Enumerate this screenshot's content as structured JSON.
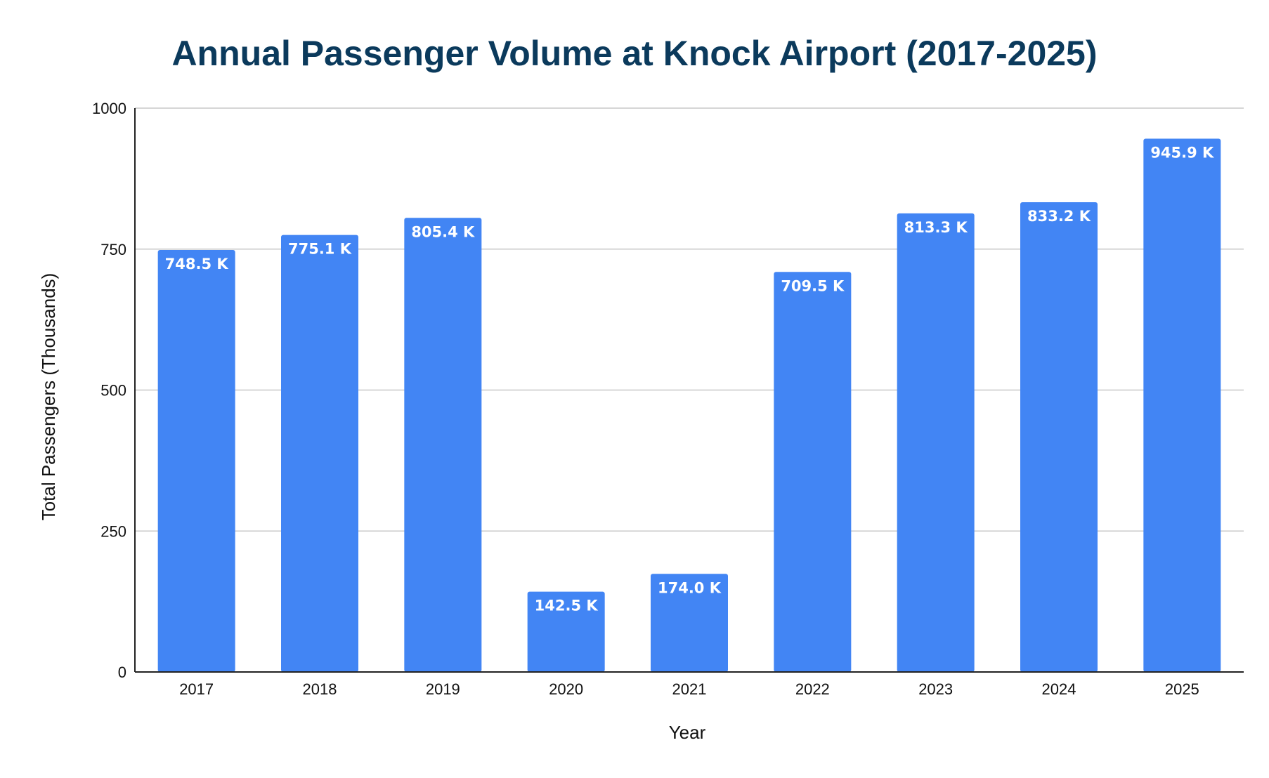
{
  "chart_data": {
    "type": "bar",
    "title": "Annual Passenger Volume at Knock Airport (2017-2025)",
    "xlabel": "Year",
    "ylabel": "Total Passengers (Thousands)",
    "categories": [
      "2017",
      "2018",
      "2019",
      "2020",
      "2021",
      "2022",
      "2023",
      "2024",
      "2025"
    ],
    "values": [
      748.5,
      775.1,
      805.4,
      142.5,
      174.0,
      709.5,
      813.3,
      833.2,
      945.9
    ],
    "data_labels": [
      "748.5 K",
      "775.1 K",
      "805.4 K",
      "142.5 K",
      "174.0 K",
      "709.5 K",
      "813.3 K",
      "833.2 K",
      "945.9 K"
    ],
    "ylim": [
      0,
      1000
    ],
    "yticks": [
      0,
      250,
      500,
      750,
      1000
    ],
    "ytick_labels": [
      "0",
      "250",
      "500",
      "750",
      "1000"
    ],
    "grid": true,
    "legend": "none",
    "bar_color": "#4285f4",
    "title_color": "#0b3a5c"
  }
}
